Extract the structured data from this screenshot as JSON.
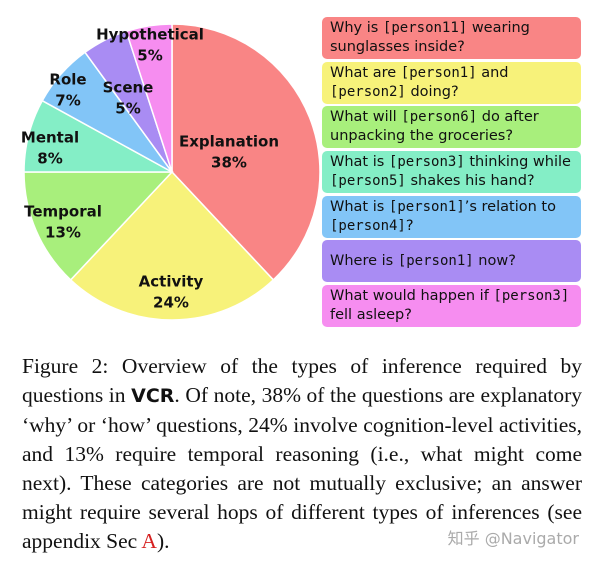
{
  "chart_data": {
    "type": "pie",
    "categories": [
      "Explanation",
      "Activity",
      "Temporal",
      "Mental",
      "Role",
      "Scene",
      "Hypothetical"
    ],
    "values": [
      38,
      24,
      13,
      8,
      7,
      5,
      5
    ],
    "value_labels": [
      "38%",
      "24%",
      "13%",
      "8%",
      "7%",
      "5%",
      "5%"
    ],
    "colors": [
      "#f98585",
      "#f7f27a",
      "#a8ef7c",
      "#84eec6",
      "#82c5f7",
      "#a98cf3",
      "#f68df0"
    ]
  },
  "questions": [
    {
      "parts": [
        "Why is ",
        "[person11]",
        " wearing sunglasses inside?"
      ]
    },
    {
      "parts": [
        "What are ",
        "[person1]",
        " and ",
        "[person2]",
        " doing?"
      ]
    },
    {
      "parts": [
        "What will ",
        "[person6]",
        " do after unpacking the groceries?"
      ]
    },
    {
      "parts": [
        "What is ",
        "[person3]",
        " thinking while ",
        "[person5]",
        " shakes his hand?"
      ]
    },
    {
      "parts": [
        "What is ",
        "[person1]",
        "’s relation to ",
        "[person4]",
        "?"
      ]
    },
    {
      "parts": [
        "Where is ",
        "[person1]",
        " now?"
      ]
    },
    {
      "parts": [
        "What would happen if ",
        "[person3]",
        " fell asleep?"
      ]
    }
  ],
  "caption": {
    "parts": [
      "Figure 2: Overview of the types of inference required by questions in ",
      "VCR",
      ". Of note, 38% of the questions are explanatory ‘why’ or ‘how’ questions, 24% involve cognition-level activities, and 13% require temporal reasoning (i.e., what might come next). These categories are not mutually exclusive; an answer might require several hops of different types of inferences (see appendix Sec ",
      "A",
      ")."
    ]
  },
  "watermark": "知乎 @Navigator"
}
